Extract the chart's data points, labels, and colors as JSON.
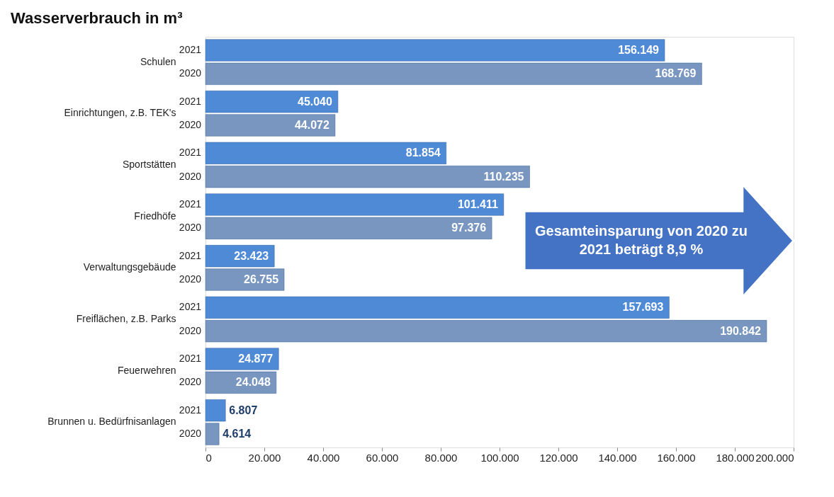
{
  "chart_data": {
    "type": "bar",
    "orientation": "horizontal",
    "title": "Wasserverbrauch in m³",
    "categories": [
      "Schulen",
      "Einrichtungen, z.B. TEK's",
      "Sportstätten",
      "Friedhöfe",
      "Verwaltungsgebäude",
      "Freiflächen, z.B. Parks",
      "Feuerwehren",
      "Brunnen u. Bedürfnisanlagen"
    ],
    "series": [
      {
        "name": "2021",
        "color": "#4f8ad6",
        "values": [
          156149,
          45040,
          81854,
          101411,
          23423,
          157693,
          24877,
          6807
        ],
        "value_labels": [
          "156.149",
          "45.040",
          "81.854",
          "101.411",
          "23.423",
          "157.693",
          "24.877",
          "6.807"
        ]
      },
      {
        "name": "2020",
        "color": "#7896c0",
        "values": [
          168769,
          44072,
          110235,
          97376,
          26755,
          190842,
          24048,
          4614
        ],
        "value_labels": [
          "168.769",
          "44.072",
          "110.235",
          "97.376",
          "26.755",
          "190.842",
          "24.048",
          "4.614"
        ]
      }
    ],
    "xlim": [
      0,
      200000
    ],
    "xticks": [
      0,
      {
        "value": 20000,
        "label": "20.000"
      },
      {
        "value": 40000,
        "label": "40.000"
      },
      {
        "value": 60000,
        "label": "60.000"
      },
      {
        "value": 80000,
        "label": "80.000"
      },
      {
        "value": 100000,
        "label": "100.000"
      },
      {
        "value": 120000,
        "label": "120.000"
      },
      {
        "value": 140000,
        "label": "140.000"
      },
      {
        "value": 160000,
        "label": "160.000"
      },
      {
        "value": 180000,
        "label": "180.000"
      },
      {
        "value": 200000,
        "label": "200.000"
      }
    ],
    "grid": false,
    "legend": false,
    "annotations": [
      "Gesamteinsparung von 2020 zu 2021 beträgt 8,9 %"
    ]
  }
}
